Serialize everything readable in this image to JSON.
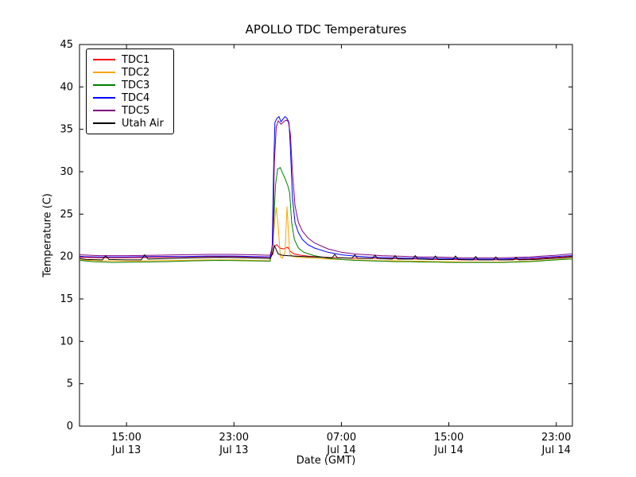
{
  "figure": {
    "title": "APOLLO TDC Temperatures",
    "xlabel": "Date (GMT)",
    "ylabel": "Temperature (C)"
  },
  "chart_data": {
    "type": "line",
    "title": "APOLLO TDC Temperatures",
    "xlabel": "Date (GMT)",
    "ylabel": "Temperature (C)",
    "x_unit": "hours since Jul 13 00:00 GMT",
    "xlim": [
      11.5,
      48.2
    ],
    "ylim": [
      0,
      45
    ],
    "grid": false,
    "legend_position": "upper left",
    "background": "#ffffff",
    "frame_color": "#000000",
    "yticks": [
      0,
      5,
      10,
      15,
      20,
      25,
      30,
      35,
      40,
      45
    ],
    "xticks": [
      {
        "v": 15,
        "line1": "15:00",
        "line2": "Jul 13"
      },
      {
        "v": 23,
        "line1": "23:00",
        "line2": "Jul 13"
      },
      {
        "v": 31,
        "line1": "07:00",
        "line2": "Jul 14"
      },
      {
        "v": 39,
        "line1": "15:00",
        "line2": "Jul 14"
      },
      {
        "v": 47,
        "line1": "23:00",
        "line2": "Jul 14"
      }
    ],
    "series": [
      {
        "name": "TDC1",
        "color": "#ff0000",
        "points": [
          [
            11.5,
            19.9
          ],
          [
            13,
            19.85
          ],
          [
            15,
            19.85
          ],
          [
            17,
            19.9
          ],
          [
            19,
            19.95
          ],
          [
            21,
            20.0
          ],
          [
            23,
            20.0
          ],
          [
            24.5,
            19.95
          ],
          [
            25.7,
            19.9
          ],
          [
            25.9,
            20.3
          ],
          [
            26.0,
            21.2
          ],
          [
            26.2,
            21.4
          ],
          [
            26.4,
            21.0
          ],
          [
            26.7,
            20.9
          ],
          [
            27.0,
            21.1
          ],
          [
            27.2,
            20.6
          ],
          [
            27.5,
            20.3
          ],
          [
            28.0,
            20.15
          ],
          [
            28.5,
            20.05
          ],
          [
            29,
            20.0
          ],
          [
            30,
            19.9
          ],
          [
            31,
            19.85
          ],
          [
            32,
            19.8
          ],
          [
            33,
            19.8
          ],
          [
            34,
            19.75
          ],
          [
            35,
            19.75
          ],
          [
            36,
            19.7
          ],
          [
            37,
            19.7
          ],
          [
            38,
            19.65
          ],
          [
            39,
            19.65
          ],
          [
            40,
            19.6
          ],
          [
            41,
            19.6
          ],
          [
            42,
            19.6
          ],
          [
            43,
            19.6
          ],
          [
            44,
            19.65
          ],
          [
            45,
            19.7
          ],
          [
            46,
            19.8
          ],
          [
            47,
            19.9
          ],
          [
            48,
            20.0
          ],
          [
            48.2,
            20.0
          ]
        ]
      },
      {
        "name": "TDC2",
        "color": "#ffa500",
        "points": [
          [
            11.5,
            19.6
          ],
          [
            13,
            19.5
          ],
          [
            15,
            19.45
          ],
          [
            17,
            19.5
          ],
          [
            19,
            19.55
          ],
          [
            21,
            19.6
          ],
          [
            23,
            19.6
          ],
          [
            24.5,
            19.55
          ],
          [
            25.7,
            19.5
          ],
          [
            25.9,
            21.5
          ],
          [
            26.05,
            24.5
          ],
          [
            26.15,
            25.8
          ],
          [
            26.3,
            23.5
          ],
          [
            26.45,
            20.0
          ],
          [
            26.6,
            19.8
          ],
          [
            26.8,
            20.5
          ],
          [
            26.95,
            25.9
          ],
          [
            27.05,
            23.0
          ],
          [
            27.15,
            20.3
          ],
          [
            27.4,
            20.0
          ],
          [
            27.8,
            19.9
          ],
          [
            28.4,
            19.85
          ],
          [
            29,
            19.8
          ],
          [
            30,
            19.7
          ],
          [
            31,
            19.65
          ],
          [
            32,
            19.6
          ],
          [
            33,
            19.55
          ],
          [
            34,
            19.5
          ],
          [
            35,
            19.5
          ],
          [
            36,
            19.45
          ],
          [
            37,
            19.45
          ],
          [
            38,
            19.4
          ],
          [
            39,
            19.4
          ],
          [
            40,
            19.35
          ],
          [
            41,
            19.35
          ],
          [
            42,
            19.35
          ],
          [
            43,
            19.35
          ],
          [
            44,
            19.4
          ],
          [
            45,
            19.45
          ],
          [
            46,
            19.55
          ],
          [
            47,
            19.65
          ],
          [
            48,
            19.75
          ],
          [
            48.2,
            19.75
          ]
        ]
      },
      {
        "name": "TDC3",
        "color": "#008000",
        "points": [
          [
            11.5,
            19.55
          ],
          [
            12.5,
            19.4
          ],
          [
            14,
            19.3
          ],
          [
            16,
            19.35
          ],
          [
            18,
            19.4
          ],
          [
            20,
            19.5
          ],
          [
            22,
            19.55
          ],
          [
            24,
            19.5
          ],
          [
            25.7,
            19.45
          ],
          [
            25.9,
            22.0
          ],
          [
            26.1,
            28.5
          ],
          [
            26.25,
            30.3
          ],
          [
            26.45,
            30.5
          ],
          [
            26.6,
            29.9
          ],
          [
            26.8,
            29.2
          ],
          [
            27.0,
            28.4
          ],
          [
            27.15,
            27.5
          ],
          [
            27.3,
            24.0
          ],
          [
            27.5,
            22.0
          ],
          [
            27.8,
            21.0
          ],
          [
            28.2,
            20.5
          ],
          [
            28.6,
            20.3
          ],
          [
            29,
            20.1
          ],
          [
            30,
            19.8
          ],
          [
            31,
            19.65
          ],
          [
            32,
            19.55
          ],
          [
            33,
            19.5
          ],
          [
            34,
            19.45
          ],
          [
            35,
            19.4
          ],
          [
            36,
            19.4
          ],
          [
            37,
            19.35
          ],
          [
            38,
            19.35
          ],
          [
            39,
            19.3
          ],
          [
            40,
            19.3
          ],
          [
            41,
            19.3
          ],
          [
            42,
            19.3
          ],
          [
            43,
            19.3
          ],
          [
            44,
            19.35
          ],
          [
            45,
            19.4
          ],
          [
            46,
            19.5
          ],
          [
            47,
            19.6
          ],
          [
            48,
            19.7
          ],
          [
            48.2,
            19.7
          ]
        ]
      },
      {
        "name": "TDC4",
        "color": "#0000ff",
        "points": [
          [
            11.5,
            20.0
          ],
          [
            13,
            19.95
          ],
          [
            15,
            19.95
          ],
          [
            17,
            20.0
          ],
          [
            19,
            20.0
          ],
          [
            21,
            20.05
          ],
          [
            23,
            20.05
          ],
          [
            24.5,
            20.0
          ],
          [
            25.7,
            19.95
          ],
          [
            25.85,
            21.0
          ],
          [
            25.95,
            30.0
          ],
          [
            26.05,
            35.8
          ],
          [
            26.2,
            36.3
          ],
          [
            26.35,
            36.5
          ],
          [
            26.5,
            35.9
          ],
          [
            26.65,
            36.2
          ],
          [
            26.8,
            36.5
          ],
          [
            26.95,
            36.3
          ],
          [
            27.1,
            35.8
          ],
          [
            27.2,
            33.0
          ],
          [
            27.35,
            27.0
          ],
          [
            27.55,
            24.0
          ],
          [
            27.8,
            22.8
          ],
          [
            28.1,
            22.0
          ],
          [
            28.5,
            21.4
          ],
          [
            29,
            21.0
          ],
          [
            30,
            20.5
          ],
          [
            31,
            20.2
          ],
          [
            32,
            20.05
          ],
          [
            33,
            19.95
          ],
          [
            34,
            19.9
          ],
          [
            35,
            19.85
          ],
          [
            36,
            19.8
          ],
          [
            37,
            19.8
          ],
          [
            38,
            19.75
          ],
          [
            39,
            19.75
          ],
          [
            40,
            19.7
          ],
          [
            41,
            19.7
          ],
          [
            42,
            19.7
          ],
          [
            43,
            19.7
          ],
          [
            44,
            19.75
          ],
          [
            45,
            19.8
          ],
          [
            46,
            19.9
          ],
          [
            47,
            20.0
          ],
          [
            48,
            20.1
          ],
          [
            48.2,
            20.1
          ]
        ]
      },
      {
        "name": "TDC5",
        "color": "#800080",
        "points": [
          [
            11.5,
            20.2
          ],
          [
            13,
            20.1
          ],
          [
            15,
            20.1
          ],
          [
            17,
            20.15
          ],
          [
            19,
            20.2
          ],
          [
            21,
            20.25
          ],
          [
            23,
            20.25
          ],
          [
            24.5,
            20.2
          ],
          [
            25.7,
            20.15
          ],
          [
            25.9,
            21.5
          ],
          [
            26.0,
            31.0
          ],
          [
            26.15,
            35.3
          ],
          [
            26.3,
            36.0
          ],
          [
            26.5,
            35.6
          ],
          [
            26.7,
            35.9
          ],
          [
            26.9,
            36.1
          ],
          [
            27.05,
            35.9
          ],
          [
            27.2,
            34.5
          ],
          [
            27.35,
            30.0
          ],
          [
            27.55,
            26.0
          ],
          [
            27.8,
            24.0
          ],
          [
            28.1,
            23.0
          ],
          [
            28.5,
            22.2
          ],
          [
            29,
            21.6
          ],
          [
            30,
            20.9
          ],
          [
            31,
            20.5
          ],
          [
            32,
            20.3
          ],
          [
            33,
            20.2
          ],
          [
            34,
            20.1
          ],
          [
            35,
            20.05
          ],
          [
            36,
            20.0
          ],
          [
            37,
            19.95
          ],
          [
            38,
            19.95
          ],
          [
            39,
            19.9
          ],
          [
            40,
            19.85
          ],
          [
            41,
            19.85
          ],
          [
            42,
            19.85
          ],
          [
            43,
            19.85
          ],
          [
            44,
            19.9
          ],
          [
            45,
            19.95
          ],
          [
            46,
            20.05
          ],
          [
            47,
            20.15
          ],
          [
            48,
            20.3
          ],
          [
            48.2,
            20.3
          ]
        ]
      },
      {
        "name": "Utah Air",
        "color": "#000000",
        "points": [
          [
            11.5,
            19.75
          ],
          [
            12,
            19.65
          ],
          [
            13.2,
            19.6
          ],
          [
            13.45,
            20.1
          ],
          [
            13.7,
            19.65
          ],
          [
            15,
            19.6
          ],
          [
            16.1,
            19.6
          ],
          [
            16.35,
            20.2
          ],
          [
            16.6,
            19.7
          ],
          [
            18,
            19.75
          ],
          [
            20,
            19.85
          ],
          [
            22,
            19.9
          ],
          [
            24,
            19.85
          ],
          [
            25.7,
            19.75
          ],
          [
            25.85,
            20.3
          ],
          [
            26.0,
            21.3
          ],
          [
            26.15,
            20.8
          ],
          [
            26.3,
            20.3
          ],
          [
            26.6,
            20.15
          ],
          [
            27.0,
            20.1
          ],
          [
            27.5,
            20.05
          ],
          [
            28.2,
            20.0
          ],
          [
            29,
            19.95
          ],
          [
            30.3,
            19.85
          ],
          [
            30.5,
            20.25
          ],
          [
            30.7,
            19.85
          ],
          [
            31.8,
            19.8
          ],
          [
            32.0,
            20.2
          ],
          [
            32.2,
            19.8
          ],
          [
            33.3,
            19.75
          ],
          [
            33.5,
            20.15
          ],
          [
            33.7,
            19.75
          ],
          [
            34.8,
            19.7
          ],
          [
            35.0,
            20.1
          ],
          [
            35.2,
            19.7
          ],
          [
            36.3,
            19.7
          ],
          [
            36.5,
            20.1
          ],
          [
            36.7,
            19.7
          ],
          [
            37.8,
            19.65
          ],
          [
            38.0,
            20.05
          ],
          [
            38.2,
            19.65
          ],
          [
            39.3,
            19.65
          ],
          [
            39.5,
            20.05
          ],
          [
            39.7,
            19.65
          ],
          [
            40.8,
            19.6
          ],
          [
            41.0,
            20.0
          ],
          [
            41.2,
            19.6
          ],
          [
            42.3,
            19.6
          ],
          [
            42.5,
            19.95
          ],
          [
            42.7,
            19.6
          ],
          [
            43.8,
            19.6
          ],
          [
            44.0,
            19.9
          ],
          [
            44.2,
            19.6
          ],
          [
            45.5,
            19.65
          ],
          [
            46.5,
            19.75
          ],
          [
            47.5,
            19.85
          ],
          [
            48.2,
            19.95
          ]
        ]
      }
    ]
  }
}
